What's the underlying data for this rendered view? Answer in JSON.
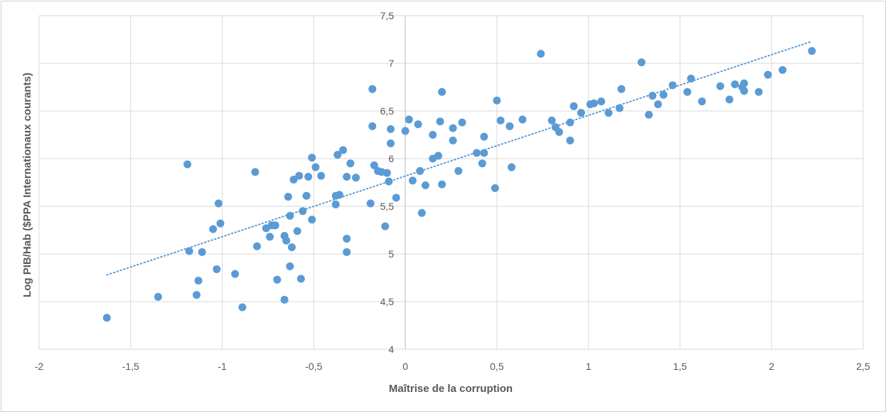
{
  "chart_data": {
    "type": "scatter",
    "title": "",
    "xlabel": "Maîtrise de la corruption",
    "ylabel": "Log PIB/Hab ($PPA Internationaux courants)",
    "xlim": [
      -2,
      2.5
    ],
    "ylim": [
      4,
      7.5
    ],
    "xticks": [
      -2,
      -1.5,
      -1,
      -0.5,
      0,
      0.5,
      1,
      1.5,
      2,
      2.5
    ],
    "xtick_labels": [
      "-2",
      "-1,5",
      "-1",
      "-0,5",
      "0",
      "0,5",
      "1",
      "1,5",
      "2",
      "2,5"
    ],
    "yticks": [
      4,
      4.5,
      5,
      5.5,
      6,
      6.5,
      7,
      7.5
    ],
    "ytick_labels": [
      "4",
      "4,5",
      "5",
      "5,5",
      "6",
      "6,5",
      "7",
      "7,5"
    ],
    "grid": true,
    "point_color": "#5b9bd5",
    "trendline": {
      "style": "dotted",
      "color": "#5b9bd5",
      "x": [
        -1.63,
        2.22
      ],
      "y": [
        4.78,
        7.23
      ]
    },
    "points": [
      [
        -1.63,
        4.33
      ],
      [
        -1.35,
        4.55
      ],
      [
        -1.19,
        5.94
      ],
      [
        -1.18,
        5.03
      ],
      [
        -1.14,
        4.57
      ],
      [
        -1.13,
        4.72
      ],
      [
        -1.11,
        5.02
      ],
      [
        -1.05,
        5.26
      ],
      [
        -1.03,
        4.84
      ],
      [
        -1.02,
        5.53
      ],
      [
        -1.01,
        5.32
      ],
      [
        -0.93,
        4.79
      ],
      [
        -0.89,
        4.44
      ],
      [
        -0.82,
        5.86
      ],
      [
        -0.81,
        5.08
      ],
      [
        -0.76,
        5.27
      ],
      [
        -0.74,
        5.18
      ],
      [
        -0.73,
        5.3
      ],
      [
        -0.71,
        5.3
      ],
      [
        -0.7,
        4.73
      ],
      [
        -0.66,
        5.19
      ],
      [
        -0.66,
        4.52
      ],
      [
        -0.65,
        5.14
      ],
      [
        -0.64,
        5.6
      ],
      [
        -0.63,
        4.87
      ],
      [
        -0.63,
        5.4
      ],
      [
        -0.62,
        5.07
      ],
      [
        -0.61,
        5.78
      ],
      [
        -0.59,
        5.24
      ],
      [
        -0.58,
        5.82
      ],
      [
        -0.57,
        4.74
      ],
      [
        -0.56,
        5.45
      ],
      [
        -0.54,
        5.61
      ],
      [
        -0.53,
        5.81
      ],
      [
        -0.51,
        6.01
      ],
      [
        -0.51,
        5.36
      ],
      [
        -0.49,
        5.91
      ],
      [
        -0.46,
        5.82
      ],
      [
        -0.38,
        5.61
      ],
      [
        -0.38,
        5.52
      ],
      [
        -0.37,
        6.04
      ],
      [
        -0.36,
        5.62
      ],
      [
        -0.34,
        6.09
      ],
      [
        -0.32,
        5.81
      ],
      [
        -0.32,
        5.16
      ],
      [
        -0.32,
        5.02
      ],
      [
        -0.3,
        5.95
      ],
      [
        -0.27,
        5.8
      ],
      [
        -0.19,
        5.53
      ],
      [
        -0.18,
        6.73
      ],
      [
        -0.18,
        6.34
      ],
      [
        -0.17,
        5.93
      ],
      [
        -0.15,
        5.87
      ],
      [
        -0.13,
        5.86
      ],
      [
        -0.11,
        5.29
      ],
      [
        -0.1,
        5.85
      ],
      [
        -0.09,
        5.76
      ],
      [
        -0.08,
        6.31
      ],
      [
        -0.08,
        6.16
      ],
      [
        -0.05,
        5.59
      ],
      [
        0.0,
        6.29
      ],
      [
        0.02,
        6.41
      ],
      [
        0.04,
        5.77
      ],
      [
        0.07,
        6.36
      ],
      [
        0.08,
        5.87
      ],
      [
        0.09,
        5.43
      ],
      [
        0.11,
        5.72
      ],
      [
        0.15,
        6.25
      ],
      [
        0.15,
        6.0
      ],
      [
        0.18,
        6.03
      ],
      [
        0.19,
        6.39
      ],
      [
        0.2,
        6.7
      ],
      [
        0.2,
        5.73
      ],
      [
        0.26,
        6.32
      ],
      [
        0.26,
        6.19
      ],
      [
        0.29,
        5.87
      ],
      [
        0.31,
        6.38
      ],
      [
        0.39,
        6.06
      ],
      [
        0.42,
        5.95
      ],
      [
        0.43,
        6.06
      ],
      [
        0.43,
        6.23
      ],
      [
        0.49,
        5.69
      ],
      [
        0.5,
        6.61
      ],
      [
        0.52,
        6.4
      ],
      [
        0.57,
        6.34
      ],
      [
        0.58,
        5.91
      ],
      [
        0.64,
        6.41
      ],
      [
        0.74,
        7.1
      ],
      [
        0.8,
        6.4
      ],
      [
        0.82,
        6.33
      ],
      [
        0.84,
        6.28
      ],
      [
        0.9,
        6.19
      ],
      [
        0.9,
        6.38
      ],
      [
        0.92,
        6.55
      ],
      [
        0.96,
        6.48
      ],
      [
        1.01,
        6.57
      ],
      [
        1.03,
        6.58
      ],
      [
        1.07,
        6.6
      ],
      [
        1.11,
        6.48
      ],
      [
        1.17,
        6.53
      ],
      [
        1.18,
        6.73
      ],
      [
        1.29,
        7.01
      ],
      [
        1.33,
        6.46
      ],
      [
        1.35,
        6.66
      ],
      [
        1.38,
        6.57
      ],
      [
        1.41,
        6.67
      ],
      [
        1.46,
        6.77
      ],
      [
        1.54,
        6.7
      ],
      [
        1.56,
        6.84
      ],
      [
        1.62,
        6.6
      ],
      [
        1.72,
        6.76
      ],
      [
        1.77,
        6.62
      ],
      [
        1.8,
        6.78
      ],
      [
        1.84,
        6.75
      ],
      [
        1.85,
        6.79
      ],
      [
        1.85,
        6.71
      ],
      [
        1.93,
        6.7
      ],
      [
        1.98,
        6.88
      ],
      [
        2.06,
        6.93
      ],
      [
        2.22,
        7.13
      ]
    ]
  }
}
